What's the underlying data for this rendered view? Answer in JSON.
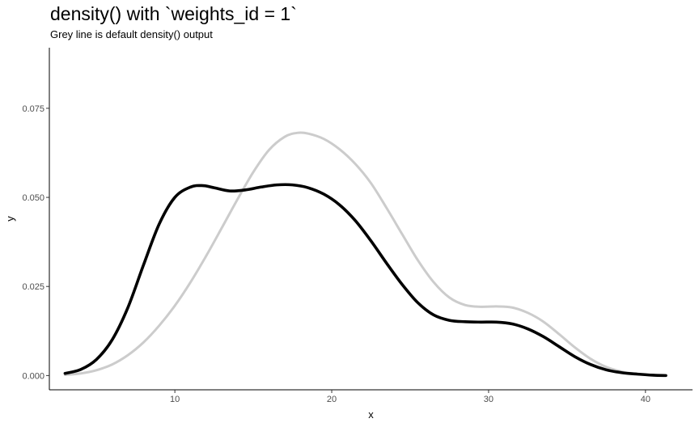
{
  "chart_data": {
    "type": "line",
    "title": "density() with `weights_id = 1`",
    "subtitle": "Grey line is default density() output",
    "xlabel": "x",
    "ylabel": "y",
    "xlim": [
      2,
      43
    ],
    "ylim": [
      -0.004,
      0.092
    ],
    "x_ticks": [
      10,
      20,
      30,
      40
    ],
    "y_ticks": [
      0.0,
      0.025,
      0.05,
      0.075
    ],
    "y_tick_labels": [
      "0.000",
      "0.025",
      "0.050",
      "0.075"
    ],
    "grid": false,
    "series": [
      {
        "color": "#cccccc",
        "x": [
          3,
          4,
          5,
          6,
          7,
          8,
          9,
          10,
          11,
          12,
          13,
          14,
          15,
          16,
          17,
          17.8,
          18.5,
          19.5,
          20.5,
          21.5,
          22.5,
          23.5,
          24.5,
          25.5,
          26.5,
          27.5,
          28.5,
          29.5,
          30.5,
          31.5,
          32.5,
          33.5,
          34.5,
          35.5,
          36.5,
          37.5,
          38.5,
          39.5,
          40.5,
          41.3
        ],
        "y": [
          0.0002,
          0.0006,
          0.0015,
          0.0031,
          0.0057,
          0.0093,
          0.014,
          0.0196,
          0.0262,
          0.0336,
          0.0415,
          0.0495,
          0.0571,
          0.0633,
          0.067,
          0.0681,
          0.0679,
          0.0664,
          0.0635,
          0.0594,
          0.054,
          0.047,
          0.0396,
          0.0323,
          0.0262,
          0.0219,
          0.0198,
          0.0193,
          0.0194,
          0.0191,
          0.0176,
          0.0151,
          0.0116,
          0.0079,
          0.0047,
          0.0024,
          0.0011,
          0.0004,
          0.0001,
          0.0
        ]
      },
      {
        "color": "#000000",
        "x": [
          3,
          4,
          5,
          6,
          7,
          8,
          9,
          10,
          11,
          11.8,
          12.5,
          13.5,
          14.5,
          15.5,
          16.5,
          17.5,
          18.5,
          19.5,
          20.5,
          21.5,
          22.5,
          23.5,
          24.5,
          25.5,
          26.5,
          27.5,
          28.5,
          29.5,
          30.5,
          31.5,
          32.5,
          33.5,
          34.5,
          35.5,
          36.5,
          37.5,
          38.5,
          39.5,
          40.5,
          41.3
        ],
        "y": [
          0.0006,
          0.0017,
          0.0045,
          0.01,
          0.019,
          0.031,
          0.0425,
          0.05,
          0.0529,
          0.0533,
          0.0527,
          0.0518,
          0.0521,
          0.0529,
          0.0535,
          0.0535,
          0.0527,
          0.0509,
          0.0479,
          0.0435,
          0.0378,
          0.0315,
          0.0255,
          0.0204,
          0.017,
          0.0155,
          0.0151,
          0.015,
          0.015,
          0.0145,
          0.0131,
          0.0109,
          0.0081,
          0.0053,
          0.0031,
          0.0016,
          0.0008,
          0.0004,
          0.0001,
          0.0
        ]
      }
    ]
  }
}
